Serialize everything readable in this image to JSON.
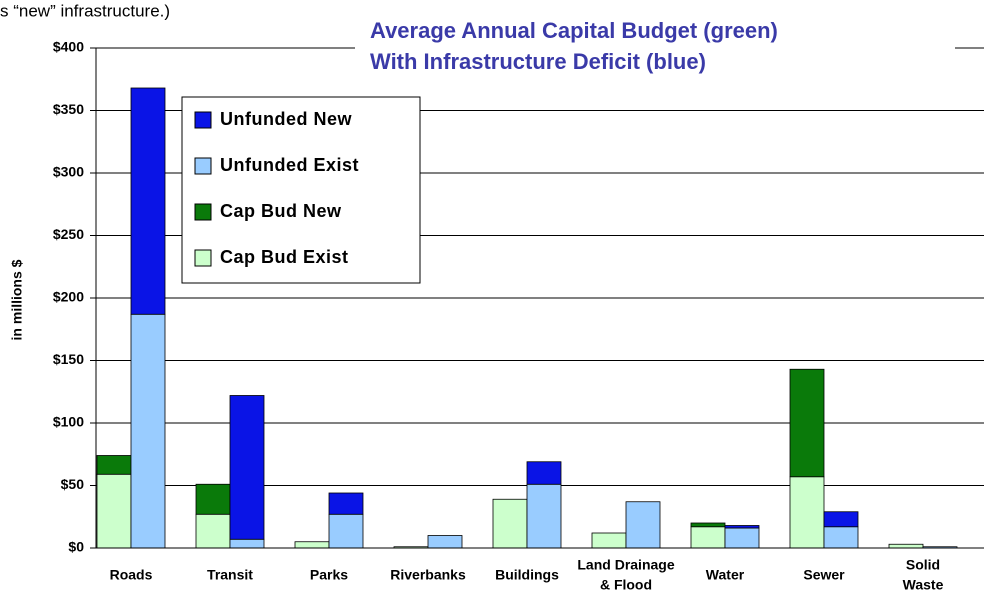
{
  "chart_data": {
    "type": "stacked-grouped-bar",
    "note": "s “new” infrastructure.)",
    "title": [
      "Average Annual Capital Budget (green)",
      "With Infrastructure Deficit (blue)"
    ],
    "y_label": "in millions $",
    "categories": [
      "Roads",
      "Transit",
      "Parks",
      "Riverbanks",
      "Buildings",
      [
        "Land Drainage",
        "& Flood"
      ],
      "Water",
      "Sewer",
      [
        "Solid",
        "Waste"
      ]
    ],
    "series": [
      {
        "name": "Unfunded New",
        "stack": "unfunded",
        "color": "#0a14e6",
        "values": [
          181,
          115,
          17,
          0,
          18,
          0,
          2,
          12,
          0
        ]
      },
      {
        "name": "Unfunded Exist",
        "stack": "unfunded",
        "color": "#99ccff",
        "values": [
          187,
          7,
          27,
          10,
          51,
          37,
          16,
          17,
          1
        ]
      },
      {
        "name": "Cap Bud New",
        "stack": "cap",
        "color": "#0a7a0a",
        "values": [
          15,
          24,
          0,
          0,
          0,
          0,
          3,
          86,
          0
        ]
      },
      {
        "name": "Cap Bud Exist",
        "stack": "cap",
        "color": "#ccffcc",
        "values": [
          59,
          27,
          5,
          1,
          39,
          12,
          17,
          57,
          3
        ]
      }
    ],
    "ylim": [
      0,
      400
    ],
    "yticks": [
      {
        "value": 0,
        "label": "$0"
      },
      {
        "value": 50,
        "label": "$50"
      },
      {
        "value": 100,
        "label": "$100"
      },
      {
        "value": 150,
        "label": "$150"
      },
      {
        "value": 200,
        "label": "$200"
      },
      {
        "value": 250,
        "label": "$250"
      },
      {
        "value": 300,
        "label": "$300"
      },
      {
        "value": 350,
        "label": "$350"
      },
      {
        "value": 400,
        "label": "$400"
      }
    ],
    "grid": true
  }
}
